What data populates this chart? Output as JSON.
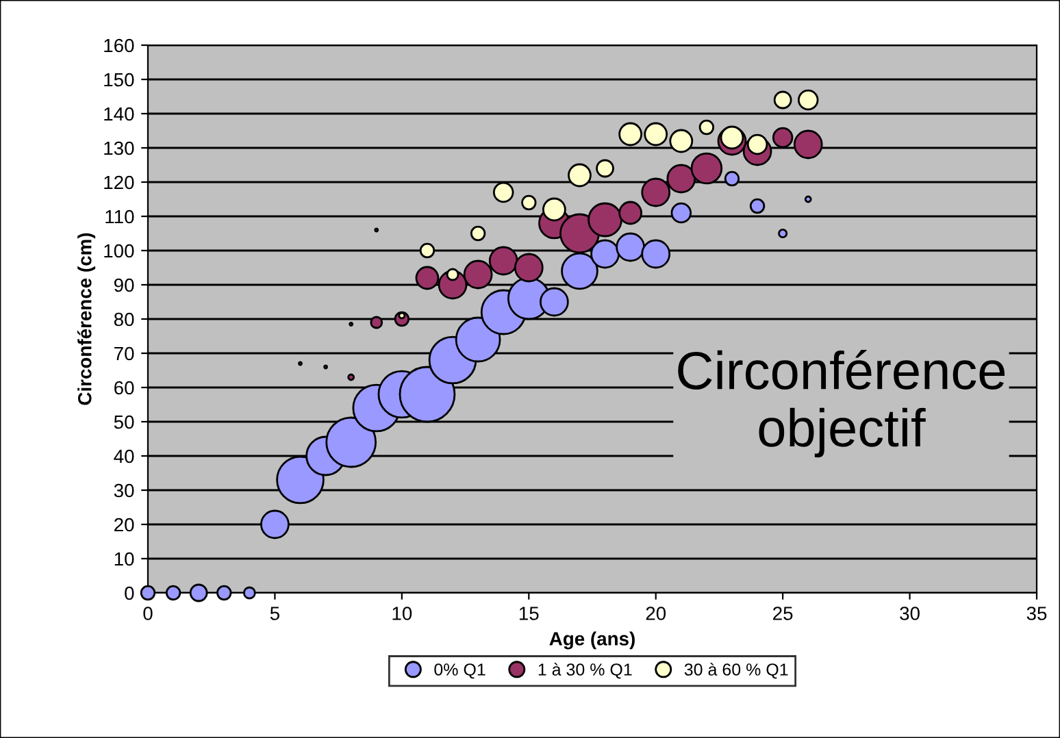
{
  "chart_data": {
    "type": "bubble",
    "xlabel": "Age (ans)",
    "ylabel": "Circonférence (cm)",
    "xlim": [
      0,
      35
    ],
    "xticks": [
      0,
      5,
      10,
      15,
      20,
      25,
      30,
      35
    ],
    "ylim": [
      0,
      160
    ],
    "yticks": [
      0,
      10,
      20,
      30,
      40,
      50,
      60,
      70,
      80,
      90,
      100,
      110,
      120,
      130,
      140,
      150,
      160
    ],
    "grid": "y",
    "legend": "bottom",
    "annotations": [
      "Circonférence objectif"
    ],
    "series": [
      {
        "name": "0% Q1",
        "color": "#9999ff",
        "x": [
          0,
          1,
          2,
          3,
          4,
          5,
          6,
          7,
          8,
          9,
          10,
          11,
          12,
          13,
          14,
          15,
          16,
          17,
          18,
          19,
          20,
          21,
          23,
          24,
          25,
          26
        ],
        "values": [
          0,
          0,
          0,
          0,
          0,
          20,
          33,
          40,
          44,
          54,
          58,
          58,
          68,
          74,
          82,
          86,
          85,
          94,
          99,
          101,
          99,
          111,
          121,
          113,
          105,
          115
        ],
        "sizes": [
          0.06,
          0.06,
          0.09,
          0.06,
          0.04,
          0.25,
          0.72,
          0.49,
          0.81,
          0.72,
          0.72,
          1,
          0.72,
          0.64,
          0.64,
          0.56,
          0.25,
          0.42,
          0.25,
          0.25,
          0.25,
          0.12,
          0.06,
          0.06,
          0.02,
          0.01
        ]
      },
      {
        "name": "1 à 30 % Q1",
        "color": "#993366",
        "x": [
          6,
          7,
          8,
          8,
          9,
          9,
          10,
          11,
          12,
          13,
          14,
          15,
          16,
          17,
          18,
          19,
          20,
          21,
          22,
          23,
          24,
          25,
          26
        ],
        "values": [
          67,
          66,
          63,
          78.5,
          106,
          79,
          80,
          92,
          90,
          93,
          97,
          95,
          108,
          105,
          109,
          111,
          117,
          121,
          124,
          132,
          129,
          133,
          131
        ],
        "sizes": [
          0.0025,
          0.0025,
          0.01,
          0.0025,
          0.0025,
          0.04,
          0.06,
          0.16,
          0.25,
          0.25,
          0.25,
          0.25,
          0.3,
          0.49,
          0.36,
          0.16,
          0.25,
          0.25,
          0.3,
          0.25,
          0.25,
          0.12,
          0.25
        ]
      },
      {
        "name": "30 à 60 % Q1",
        "color": "#ffffcc",
        "x": [
          10,
          11,
          12,
          13,
          14,
          15,
          16,
          17,
          18,
          19,
          20,
          21,
          22,
          23,
          24,
          25,
          26
        ],
        "values": [
          81,
          100,
          93,
          105,
          117,
          114,
          112,
          122,
          124,
          134,
          134,
          132,
          136,
          133,
          131,
          144,
          144
        ],
        "sizes": [
          0.01,
          0.06,
          0.04,
          0.06,
          0.12,
          0.06,
          0.16,
          0.16,
          0.09,
          0.16,
          0.16,
          0.16,
          0.06,
          0.16,
          0.12,
          0.09,
          0.12
        ]
      }
    ]
  }
}
